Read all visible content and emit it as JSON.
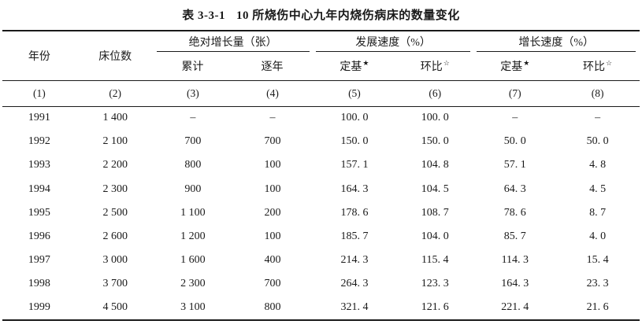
{
  "page": {
    "background": "#ffffff",
    "text_color": "#1a1a1a",
    "rule_color": "#1a1a1a"
  },
  "title": {
    "number": "表 3-3-1",
    "text": "10 所烧伤中心九年内烧伤病床的数量变化"
  },
  "table": {
    "header": {
      "year": "年份",
      "beds": "床位数",
      "groups": [
        {
          "label": "绝对增长量（张）",
          "subs": [
            {
              "text": "累计",
              "mark": ""
            },
            {
              "text": "逐年",
              "mark": ""
            }
          ]
        },
        {
          "label": "发展速度（%）",
          "subs": [
            {
              "text": "定基",
              "mark": "★"
            },
            {
              "text": "环比",
              "mark": "☆"
            }
          ]
        },
        {
          "label": "增长速度（%）",
          "subs": [
            {
              "text": "定基",
              "mark": "★"
            },
            {
              "text": "环比",
              "mark": "☆"
            }
          ]
        }
      ],
      "column_numbers": [
        "(1)",
        "(2)",
        "(3)",
        "(4)",
        "(5)",
        "(6)",
        "(7)",
        "(8)"
      ]
    },
    "rows": [
      [
        "1991",
        "1 400",
        "–",
        "–",
        "100. 0",
        "100. 0",
        "–",
        "–"
      ],
      [
        "1992",
        "2 100",
        "700",
        "700",
        "150. 0",
        "150. 0",
        "50. 0",
        "50. 0"
      ],
      [
        "1993",
        "2 200",
        "800",
        "100",
        "157. 1",
        "104. 8",
        "57. 1",
        "4. 8"
      ],
      [
        "1994",
        "2 300",
        "900",
        "100",
        "164. 3",
        "104. 5",
        "64. 3",
        "4. 5"
      ],
      [
        "1995",
        "2 500",
        "1 100",
        "200",
        "178. 6",
        "108. 7",
        "78. 6",
        "8. 7"
      ],
      [
        "1996",
        "2 600",
        "1 200",
        "100",
        "185. 7",
        "104. 0",
        "85. 7",
        "4. 0"
      ],
      [
        "1997",
        "3 000",
        "1 600",
        "400",
        "214. 3",
        "115. 4",
        "114. 3",
        "15. 4"
      ],
      [
        "1998",
        "3 700",
        "2 300",
        "700",
        "264. 3",
        "123. 3",
        "164. 3",
        "23. 3"
      ],
      [
        "1999",
        "4 500",
        "3 100",
        "800",
        "321. 4",
        "121. 6",
        "221. 4",
        "21. 6"
      ]
    ]
  },
  "chart_data": {
    "type": "table",
    "title": "表 3-3-1 10 所烧伤中心九年内烧伤病床的数量变化",
    "columns": [
      "年份",
      "床位数",
      "绝对增长量(张) 累计",
      "绝对增长量(张) 逐年",
      "发展速度(%) 定基",
      "发展速度(%) 环比",
      "增长速度(%) 定基",
      "增长速度(%) 环比"
    ],
    "rows": [
      [
        1991,
        1400,
        null,
        null,
        100.0,
        100.0,
        null,
        null
      ],
      [
        1992,
        2100,
        700,
        700,
        150.0,
        150.0,
        50.0,
        50.0
      ],
      [
        1993,
        2200,
        800,
        100,
        157.1,
        104.8,
        57.1,
        4.8
      ],
      [
        1994,
        2300,
        900,
        100,
        164.3,
        104.5,
        64.3,
        4.5
      ],
      [
        1995,
        2500,
        1100,
        200,
        178.6,
        108.7,
        78.6,
        8.7
      ],
      [
        1996,
        2600,
        1200,
        100,
        185.7,
        104.0,
        85.7,
        4.0
      ],
      [
        1997,
        3000,
        1600,
        400,
        214.3,
        115.4,
        114.3,
        15.4
      ],
      [
        1998,
        3700,
        2300,
        700,
        264.3,
        123.3,
        164.3,
        23.3
      ],
      [
        1999,
        4500,
        3100,
        800,
        321.4,
        121.6,
        221.4,
        21.6
      ]
    ]
  }
}
